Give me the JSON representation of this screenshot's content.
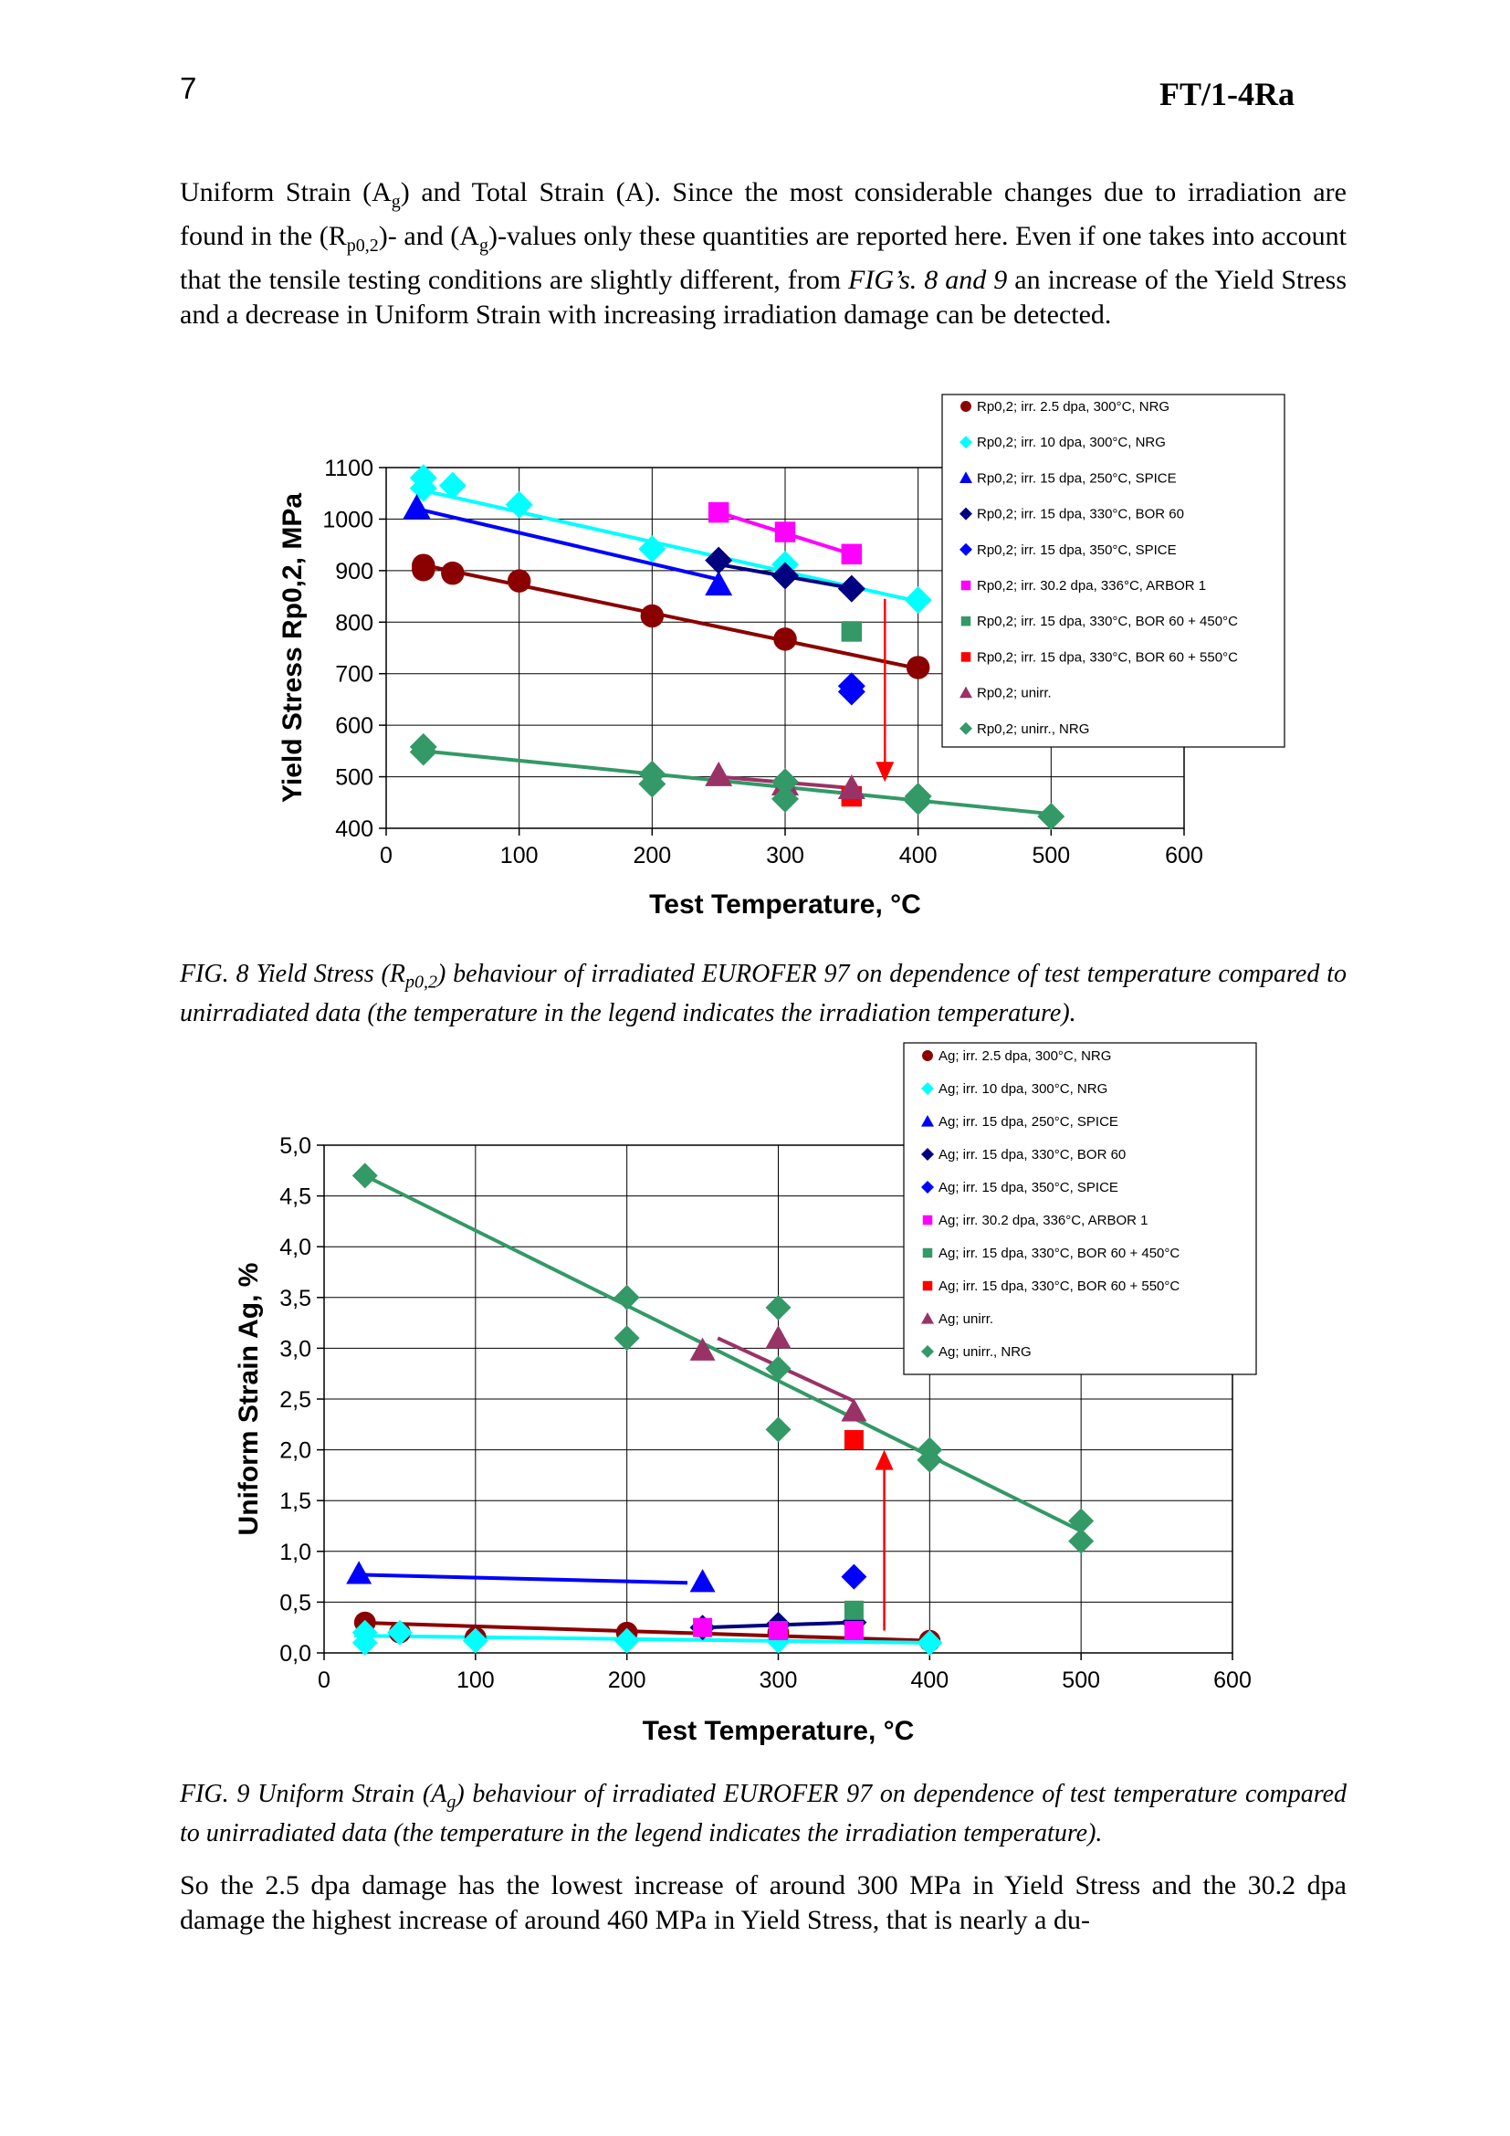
{
  "header": {
    "page_number": "7",
    "doc_code": "FT/1-4Ra"
  },
  "para1": {
    "t1": "Uniform Strain (A",
    "s1": "g",
    "t2": ") and Total Strain (A). Since the most considerable changes due to irradiation are found in the (R",
    "s2": "p0,2",
    "t3": ")- and (A",
    "s3": "g",
    "t4": ")-values only these quantities are reported here. Even if one takes into account that the tensile testing conditions are slightly different, from ",
    "i1": "FIG’s. 8 and 9",
    "t5": " an increase of the Yield Stress and a decrease in Uniform Strain with increasing irradiation damage can be detected."
  },
  "caption1": {
    "a": "FIG. 8 Yield Stress (R",
    "sub": "p0,2",
    "b": ") behaviour of irradiated EUROFER 97 on dependence of test temperature compared to unirradiated data (the temperature in the legend indicates the irradiation temperature)."
  },
  "caption2": {
    "a": "FIG. 9 Uniform Strain (A",
    "sub": "g",
    "b": ") behaviour of irradiated EUROFER 97 on dependence of test temperature compared to unirradiated data (the temperature in the legend indicates the irradiation temperature)."
  },
  "para2": "So the 2.5 dpa damage has the lowest increase of around 300 MPa in Yield Stress and the 30.2 dpa damage the highest increase of around 460 MPa in Yield Stress, that is nearly a du-",
  "chart_data": [
    {
      "type": "scatter",
      "xlabel": "Test Temperature, °C",
      "ylabel": "Yield Stress Rp0,2, MPa",
      "xlim": [
        0,
        600
      ],
      "ylim": [
        400,
        1100
      ],
      "xticks": [
        "0",
        "100",
        "200",
        "300",
        "400",
        "500",
        "600"
      ],
      "yticks": [
        "400",
        "500",
        "600",
        "700",
        "800",
        "900",
        "1000",
        "1100"
      ],
      "grid": true,
      "legend_position": "top-right",
      "series": [
        {
          "name": "Rp0,2; irr. 2.5 dpa, 300°C, NRG",
          "marker": "circle",
          "color": "#8B0000",
          "points": [
            [
              28,
              910
            ],
            [
              28,
              902
            ],
            [
              50,
              895
            ],
            [
              100,
              880
            ],
            [
              200,
              812
            ],
            [
              300,
              767
            ],
            [
              400,
              712
            ]
          ],
          "trend": [
            [
              20,
              915
            ],
            [
              400,
              710
            ]
          ]
        },
        {
          "name": "Rp0,2; irr. 10 dpa, 300°C, NRG",
          "marker": "diamond",
          "color": "#00FFFF",
          "points": [
            [
              28,
              1080
            ],
            [
              28,
              1060
            ],
            [
              50,
              1065
            ],
            [
              100,
              1028
            ],
            [
              200,
              942
            ],
            [
              300,
              912
            ],
            [
              400,
              843
            ]
          ],
          "trend": [
            [
              20,
              1060
            ],
            [
              400,
              840
            ]
          ]
        },
        {
          "name": "Rp0,2; irr. 15 dpa, 250°C, SPICE",
          "marker": "triangle",
          "color": "#0000FF",
          "points": [
            [
              23,
              1022
            ],
            [
              250,
              873
            ]
          ],
          "trend": [
            [
              23,
              1020
            ],
            [
              250,
              883
            ]
          ]
        },
        {
          "name": "Rp0,2; irr. 15 dpa, 330°C, BOR 60",
          "marker": "diamond",
          "color": "#000080",
          "points": [
            [
              250,
              920
            ],
            [
              300,
              890
            ],
            [
              350,
              865
            ]
          ],
          "trend": [
            [
              250,
              912
            ],
            [
              350,
              866
            ]
          ]
        },
        {
          "name": "Rp0,2; irr. 15 dpa, 350°C, SPICE",
          "marker": "diamond",
          "color": "#0000FF",
          "points": [
            [
              350,
              676
            ],
            [
              350,
              665
            ]
          ]
        },
        {
          "name": "Rp0,2; irr. 30.2 dpa, 336°C, ARBOR 1",
          "marker": "square",
          "color": "#FF00FF",
          "points": [
            [
              250,
              1013
            ],
            [
              300,
              975
            ],
            [
              350,
              932
            ]
          ],
          "trend": [
            [
              250,
              1013
            ],
            [
              350,
              932
            ]
          ]
        },
        {
          "name": "Rp0,2; irr. 15 dpa, 330°C, BOR 60 + 450°C",
          "marker": "square",
          "color": "#339966",
          "points": [
            [
              350,
              782
            ]
          ]
        },
        {
          "name": "Rp0,2; irr. 15 dpa, 330°C, BOR 60 + 550°C",
          "marker": "square",
          "color": "#FF0000",
          "points": [
            [
              350,
              462
            ]
          ]
        },
        {
          "name": "Rp0,2; unirr.",
          "marker": "triangle",
          "color": "#993366",
          "points": [
            [
              250,
              503
            ],
            [
              300,
              485
            ],
            [
              350,
              478
            ]
          ],
          "trend": [
            [
              250,
              500
            ],
            [
              350,
              478
            ]
          ]
        },
        {
          "name": "Rp0,2; unirr., NRG",
          "marker": "diamond",
          "color": "#339966",
          "points": [
            [
              28,
              558
            ],
            [
              28,
              548
            ],
            [
              200,
              505
            ],
            [
              200,
              486
            ],
            [
              300,
              490
            ],
            [
              300,
              457
            ],
            [
              400,
              462
            ],
            [
              400,
              452
            ],
            [
              500,
              423
            ]
          ],
          "trend": [
            [
              20,
              552
            ],
            [
              500,
              428
            ]
          ]
        }
      ],
      "arrow": {
        "from": [
          375,
          845
        ],
        "to": [
          375,
          490
        ],
        "color": "#FF0000"
      }
    },
    {
      "type": "scatter",
      "xlabel": "Test Temperature, °C",
      "ylabel": "Uniform Strain Ag, %",
      "xlim": [
        0,
        600
      ],
      "ylim": [
        0,
        5
      ],
      "xticks": [
        "0",
        "100",
        "200",
        "300",
        "400",
        "500",
        "600"
      ],
      "yticks": [
        "0,0",
        "0,5",
        "1,0",
        "1,5",
        "2,0",
        "2,5",
        "3,0",
        "3,5",
        "4,0",
        "4,5",
        "5,0"
      ],
      "grid": true,
      "legend_position": "top-right",
      "series": [
        {
          "name": "Ag; irr. 2.5 dpa, 300°C, NRG",
          "marker": "circle",
          "color": "#8B0000",
          "points": [
            [
              27,
              0.3
            ],
            [
              50,
              0.2
            ],
            [
              100,
              0.15
            ],
            [
              200,
              0.2
            ],
            [
              300,
              0.2
            ],
            [
              400,
              0.12
            ]
          ],
          "trend": [
            [
              20,
              0.3
            ],
            [
              400,
              0.12
            ]
          ]
        },
        {
          "name": "Ag; irr. 10 dpa, 300°C, NRG",
          "marker": "diamond",
          "color": "#00FFFF",
          "points": [
            [
              27,
              0.2
            ],
            [
              27,
              0.1
            ],
            [
              50,
              0.2
            ],
            [
              100,
              0.12
            ],
            [
              200,
              0.12
            ],
            [
              300,
              0.12
            ],
            [
              400,
              0.1
            ]
          ],
          "trend": [
            [
              20,
              0.17
            ],
            [
              400,
              0.1
            ]
          ]
        },
        {
          "name": "Ag; irr. 15 dpa, 250°C, SPICE",
          "marker": "triangle",
          "color": "#0000FF",
          "points": [
            [
              23,
              0.78
            ],
            [
              250,
              0.7
            ]
          ],
          "trend": [
            [
              23,
              0.77
            ],
            [
              240,
              0.69
            ]
          ]
        },
        {
          "name": "Ag; irr. 15 dpa, 330°C, BOR 60",
          "marker": "diamond",
          "color": "#000080",
          "points": [
            [
              250,
              0.25
            ],
            [
              300,
              0.28
            ],
            [
              350,
              0.3
            ]
          ],
          "trend": [
            [
              250,
              0.25
            ],
            [
              350,
              0.3
            ]
          ]
        },
        {
          "name": "Ag; irr. 15 dpa, 350°C, SPICE",
          "marker": "diamond",
          "color": "#0000FF",
          "points": [
            [
              350,
              0.75
            ]
          ]
        },
        {
          "name": "Ag; irr. 30.2 dpa, 336°C, ARBOR 1",
          "marker": "square",
          "color": "#FF00FF",
          "points": [
            [
              250,
              0.25
            ],
            [
              300,
              0.22
            ],
            [
              350,
              0.22
            ]
          ]
        },
        {
          "name": "Ag; irr. 15 dpa, 330°C, BOR 60 + 450°C",
          "marker": "square",
          "color": "#339966",
          "points": [
            [
              350,
              0.42
            ]
          ]
        },
        {
          "name": "Ag; irr. 15 dpa, 330°C, BOR 60 + 550°C",
          "marker": "square",
          "color": "#FF0000",
          "points": [
            [
              350,
              2.1
            ]
          ]
        },
        {
          "name": "Ag; unirr.",
          "marker": "triangle",
          "color": "#993366",
          "points": [
            [
              250,
              2.98
            ],
            [
              300,
              3.1
            ],
            [
              350,
              2.38
            ]
          ],
          "trend": [
            [
              260,
              3.1
            ],
            [
              350,
              2.48
            ]
          ]
        },
        {
          "name": "Ag; unirr., NRG",
          "marker": "diamond",
          "color": "#339966",
          "points": [
            [
              27,
              4.7
            ],
            [
              200,
              3.5
            ],
            [
              200,
              3.1
            ],
            [
              300,
              3.4
            ],
            [
              300,
              2.8
            ],
            [
              300,
              2.2
            ],
            [
              400,
              2.0
            ],
            [
              400,
              1.9
            ],
            [
              500,
              1.3
            ],
            [
              500,
              1.1
            ]
          ],
          "trend": [
            [
              27,
              4.7
            ],
            [
              500,
              1.2
            ]
          ]
        }
      ],
      "arrow": {
        "from": [
          370,
          0.22
        ],
        "to": [
          370,
          2.0
        ],
        "color": "#FF0000"
      }
    }
  ]
}
